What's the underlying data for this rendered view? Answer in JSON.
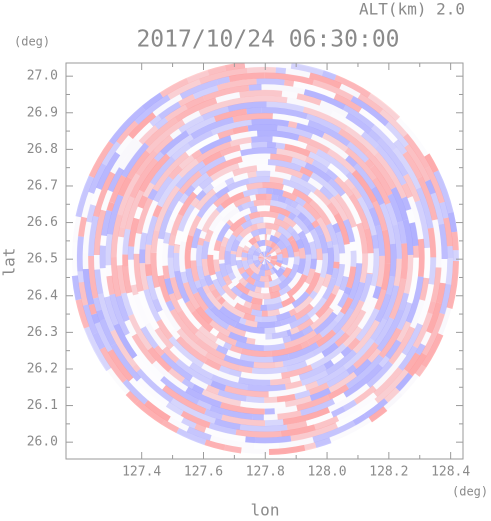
{
  "chart_data": {
    "type": "ppi",
    "title": "2017/10/24 06:30:00",
    "subtitle": "ALT(km) 2.0",
    "x_label": "lon",
    "y_label": "lat",
    "x_unit": "(deg)",
    "y_unit": "(deg)",
    "xlim": [
      127.155,
      128.44
    ],
    "ylim": [
      25.954,
      27.036
    ],
    "xticks": [
      127.4,
      127.6,
      127.8,
      {
        "value": 128,
        "label": "128.0"
      },
      128.2,
      128.4
    ],
    "yticks": [
      {
        "value": 26,
        "label": "26.0"
      },
      26.1,
      26.2,
      26.3,
      26.4,
      26.5,
      26.6,
      26.7,
      26.8,
      26.9,
      {
        "value": 27,
        "label": "27.0"
      }
    ]
  }
}
